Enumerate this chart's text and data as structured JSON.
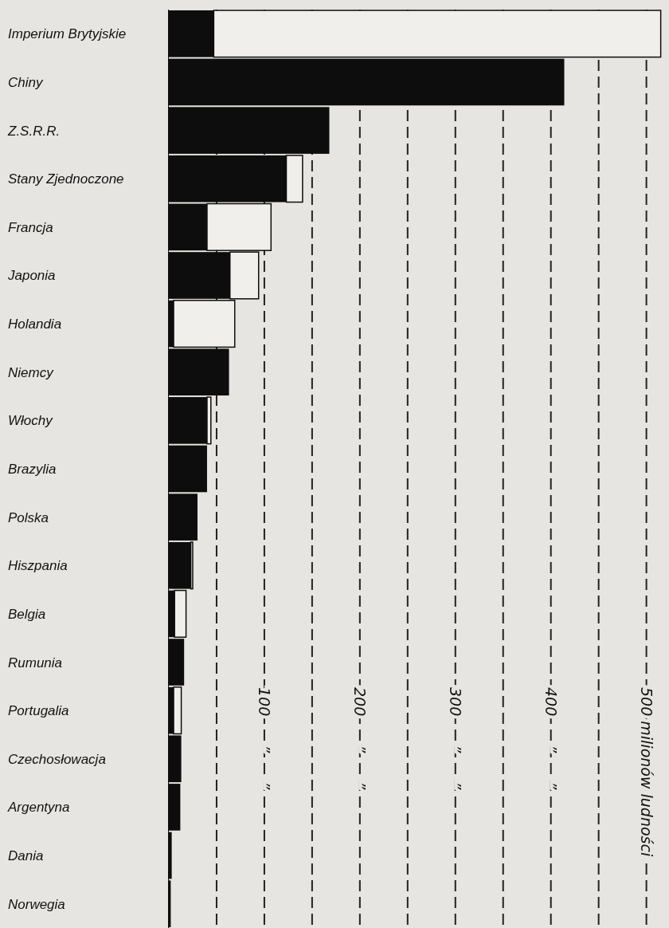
{
  "chart_data": {
    "type": "bar",
    "orientation": "horizontal",
    "stacked": true,
    "categories": [
      "Imperium Brytyjskie",
      "Chiny",
      "Z.S.R.R.",
      "Stany Zjednoczone",
      "Francja",
      "Japonia",
      "Holandia",
      "Niemcy",
      "Włochy",
      "Brazylia",
      "Polska",
      "Hiszpania",
      "Belgia",
      "Rumunia",
      "Portugalia",
      "Czechosłowacja",
      "Argentyna",
      "Dania",
      "Norwegia"
    ],
    "series": [
      {
        "color": "#0d0d0d",
        "values": [
          47,
          414,
          168,
          123,
          40,
          64,
          5,
          63,
          40,
          40,
          30,
          23,
          6,
          16,
          5,
          13,
          12,
          3,
          2
        ]
      },
      {
        "color": "#f0efec",
        "values": [
          468,
          null,
          null,
          17,
          67,
          30,
          64,
          null,
          4,
          null,
          null,
          2,
          12,
          null,
          8,
          null,
          null,
          null,
          null
        ]
      }
    ],
    "xlim": [
      0,
      522
    ],
    "xticks": [
      {
        "value": 50,
        "label": null
      },
      {
        "value": 100,
        "label": "100      ”      ”"
      },
      {
        "value": 150,
        "label": null
      },
      {
        "value": 200,
        "label": "200      ”      ”"
      },
      {
        "value": 250,
        "label": null
      },
      {
        "value": 300,
        "label": "300      ”      ”"
      },
      {
        "value": 350,
        "label": null
      },
      {
        "value": 400,
        "label": "400      ”      ”"
      },
      {
        "value": 450,
        "label": null
      },
      {
        "value": 500,
        "label": "500 milionów ludności"
      }
    ],
    "grid": "x"
  }
}
